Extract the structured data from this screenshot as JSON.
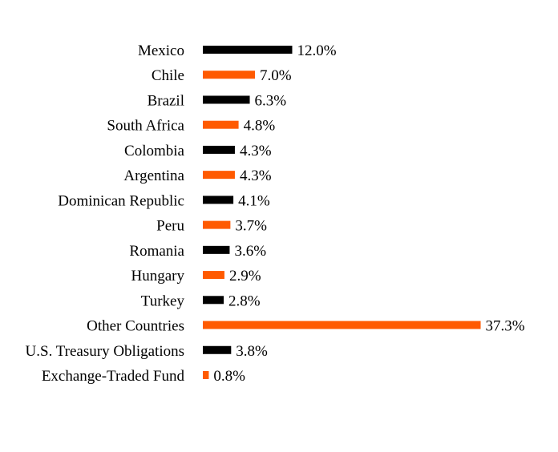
{
  "chart_data": {
    "type": "bar",
    "orientation": "horizontal",
    "categories": [
      "Mexico",
      "Chile",
      "Brazil",
      "South Africa",
      "Colombia",
      "Argentina",
      "Dominican Republic",
      "Peru",
      "Romania",
      "Hungary",
      "Turkey",
      "Other Countries",
      "U.S. Treasury Obligations",
      "Exchange-Traded Fund"
    ],
    "values": [
      12.0,
      7.0,
      6.3,
      4.8,
      4.3,
      4.3,
      4.1,
      3.7,
      3.6,
      2.9,
      2.8,
      37.3,
      3.8,
      0.8
    ],
    "value_labels": [
      "12.0%",
      "7.0%",
      "6.3%",
      "4.8%",
      "4.3%",
      "4.3%",
      "4.1%",
      "3.7%",
      "3.6%",
      "2.9%",
      "2.8%",
      "37.3%",
      "3.8%",
      "0.8%"
    ],
    "unit": "%",
    "bar_colors": [
      "#000000",
      "#FF5A00"
    ],
    "color_pattern": "alternating",
    "xlim": [
      0,
      37.3
    ],
    "grid": false,
    "legend": "none",
    "title": "",
    "xlabel": "",
    "ylabel": ""
  }
}
